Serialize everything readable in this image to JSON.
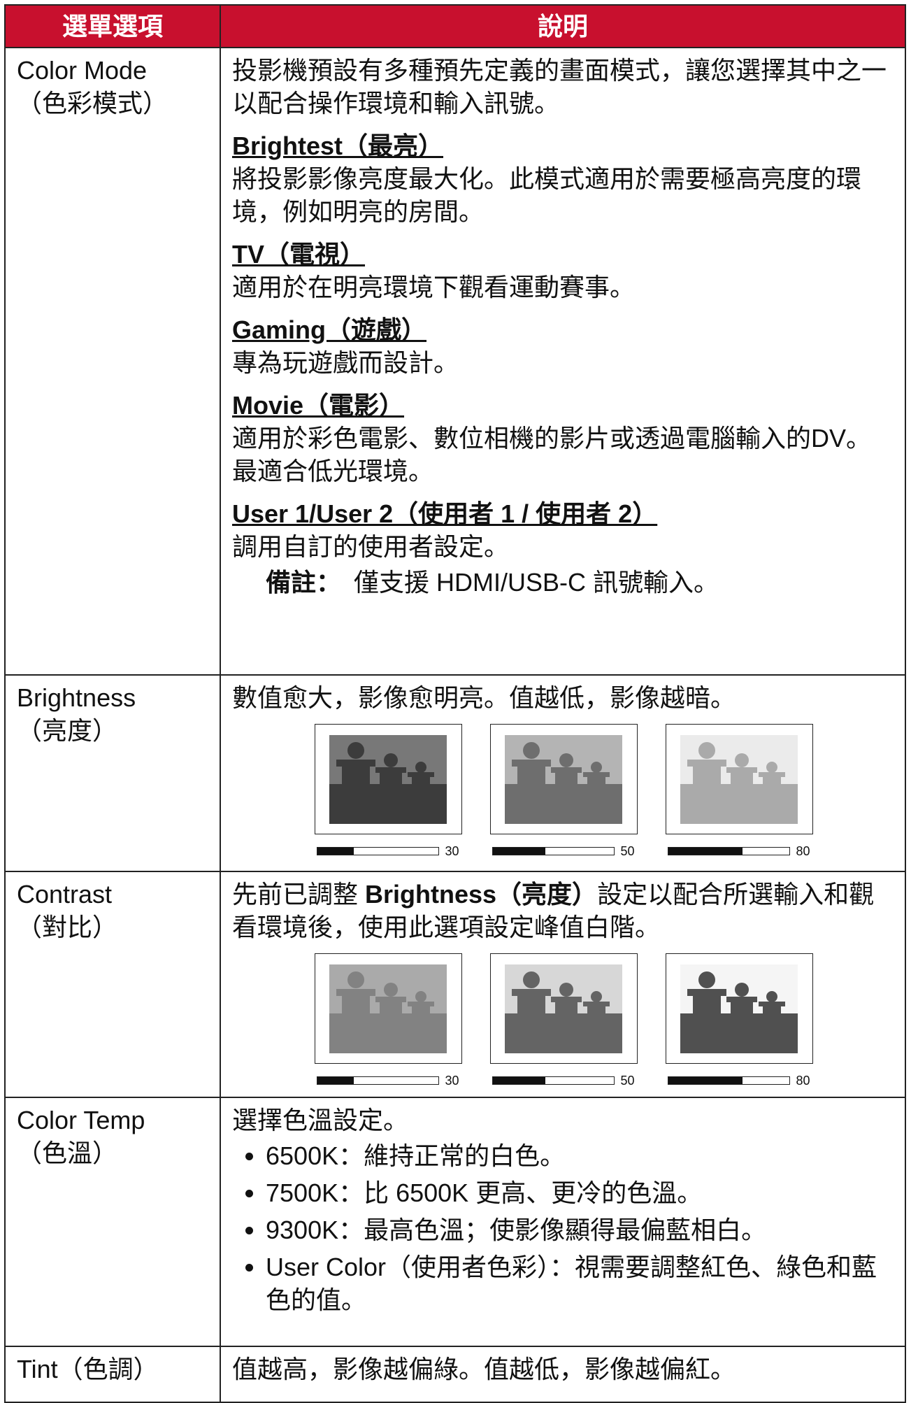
{
  "header": {
    "col1": "選單選項",
    "col2": "說明"
  },
  "rows": [
    {
      "item": "Color Mode",
      "item_sub": "（色彩模式）",
      "description": "投影機預設有多種預先定義的畫面模式，讓您選擇其中之一以配合操作環境和輸入訊號。",
      "modes": [
        {
          "name": "Brightest（最亮）",
          "text": "將投影影像亮度最大化。此模式適用於需要極高亮度的環境，例如明亮的房間。"
        },
        {
          "name": "TV（電視）",
          "text": "適用於在明亮環境下觀看運動賽事。"
        },
        {
          "name": "Gaming（遊戲）",
          "text": "專為玩遊戲而設計。"
        },
        {
          "name": "Movie（電影）",
          "text": "適用於彩色電影、數位相機的影片或透過電腦輸入的DV。最適合低光環境。"
        },
        {
          "name": "User 1/User 2（使用者 1 / 使用者 2）",
          "text": "調用自訂的使用者設定。"
        }
      ],
      "note": {
        "label": "備註：",
        "text": "僅支援 HDMI/USB-C 訊號輸入。"
      }
    },
    {
      "item": "Brightness",
      "item_sub": "（亮度）",
      "description": "數值愈大，影像愈明亮。值越低，影像越暗。",
      "image_levels": [
        "30",
        "50",
        "80"
      ]
    },
    {
      "item": "Contrast",
      "item_sub": "（對比）",
      "description_parts": [
        "先前已調整 ",
        "Brightness（亮度）",
        "設定以配合所選輸入和觀看環境後，使用此選項設定峰值白階。"
      ],
      "image_levels": [
        "30",
        "50",
        "80"
      ]
    },
    {
      "item": "Color Temp",
      "item_sub": "（色溫）",
      "description": "選擇色溫設定。",
      "bullets": [
        "6500K：維持正常的白色。",
        "7500K：比 6500K 更高、更冷的色溫。",
        "9300K：最高色溫；使影像顯得最偏藍相白。",
        "User Color（使用者色彩）：視需要調整紅色、綠色和藍色的值。"
      ]
    },
    {
      "item": "Tint（色調）",
      "description": "值越高，影像越偏綠。值越低，影像越偏紅。"
    }
  ]
}
